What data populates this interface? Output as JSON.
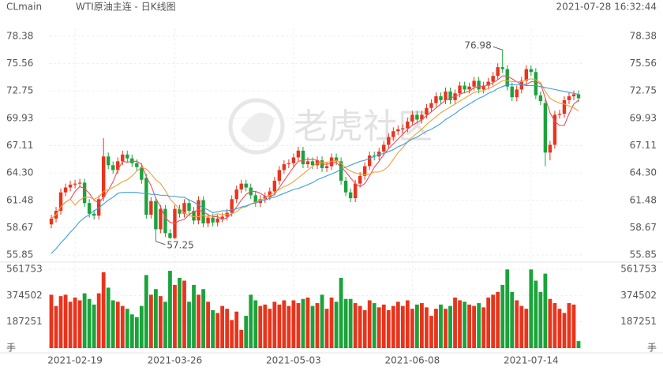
{
  "chart_data": {
    "type": "candlestick",
    "symbol": "CLmain",
    "title": "WTI原油主连 - 日K线图",
    "timestamp": "2021-07-28 16:32:44",
    "watermark": "老虎社区",
    "grid": true,
    "up_color": "#e8341c",
    "down_color": "#1ba33b",
    "categories": [
      null,
      null,
      null,
      null,
      null,
      "2021-02-19",
      null,
      null,
      null,
      null,
      null,
      null,
      null,
      null,
      null,
      null,
      null,
      null,
      null,
      null,
      null,
      null,
      null,
      null,
      null,
      null,
      "2021-03-26",
      null,
      null,
      null,
      null,
      null,
      null,
      null,
      null,
      null,
      null,
      null,
      null,
      null,
      null,
      null,
      null,
      null,
      null,
      null,
      null,
      null,
      null,
      null,
      null,
      "2021-05-03",
      null,
      null,
      null,
      null,
      null,
      null,
      null,
      null,
      null,
      null,
      null,
      null,
      null,
      null,
      null,
      null,
      null,
      null,
      null,
      null,
      null,
      null,
      null,
      null,
      "2021-06-08",
      null,
      null,
      null,
      null,
      null,
      null,
      null,
      null,
      null,
      null,
      null,
      null,
      null,
      null,
      null,
      null,
      null,
      null,
      null,
      null,
      null,
      null,
      null,
      null,
      "2021-07-14",
      null,
      null,
      null,
      null,
      null,
      null,
      null,
      null,
      null,
      null
    ],
    "open": [
      59.0,
      59.6,
      60.4,
      62.3,
      62.8,
      63.1,
      63.2,
      63.3,
      61.2,
      60.1,
      59.9,
      61.8,
      66.0,
      65.1,
      64.6,
      65.5,
      66.2,
      65.8,
      65.3,
      64.9,
      63.8,
      60.0,
      61.4,
      58.5,
      60.6,
      58.1,
      57.6,
      60.6,
      60.1,
      61.2,
      60.4,
      59.4,
      61.5,
      59.1,
      59.7,
      59.2,
      59.6,
      59.8,
      60.2,
      61.6,
      62.6,
      63.2,
      62.8,
      62.0,
      61.2,
      61.6,
      61.9,
      62.4,
      63.5,
      64.6,
      65.2,
      65.3,
      65.9,
      66.6,
      65.2,
      65.5,
      65.1,
      65.6,
      64.8,
      65.0,
      65.9,
      65.5,
      63.5,
      62.3,
      61.7,
      63.2,
      64.0,
      65.0,
      66.1,
      66.0,
      66.5,
      67.2,
      68.0,
      68.6,
      68.8,
      68.9,
      69.6,
      70.3,
      69.8,
      70.3,
      71.0,
      71.5,
      72.2,
      71.8,
      72.7,
      71.8,
      72.5,
      73.3,
      72.9,
      73.2,
      73.8,
      72.9,
      73.3,
      73.7,
      74.3,
      75.2,
      75.0,
      73.2,
      72.1,
      72.9,
      73.8,
      75.0,
      74.7,
      72.3,
      71.5,
      66.4,
      67.2,
      70.3,
      70.4,
      71.8,
      72.2,
      72.4
    ],
    "high": [
      60.0,
      60.8,
      62.7,
      63.2,
      63.5,
      63.6,
      63.7,
      63.7,
      61.6,
      60.5,
      62.0,
      67.9,
      66.4,
      65.5,
      65.9,
      66.6,
      66.6,
      66.2,
      65.7,
      65.3,
      64.2,
      61.8,
      61.8,
      61.0,
      61.0,
      58.5,
      61.0,
      61.0,
      61.6,
      61.6,
      60.8,
      61.9,
      61.9,
      60.1,
      60.1,
      60.0,
      60.2,
      60.6,
      62.0,
      63.0,
      63.6,
      63.6,
      63.2,
      62.4,
      62.0,
      62.3,
      62.8,
      63.9,
      65.0,
      65.6,
      65.7,
      66.3,
      67.0,
      67.0,
      65.9,
      65.9,
      66.0,
      66.0,
      65.4,
      66.3,
      66.3,
      65.9,
      63.9,
      62.7,
      63.6,
      64.4,
      65.4,
      66.5,
      66.5,
      66.9,
      67.6,
      68.4,
      69.0,
      69.2,
      69.3,
      70.0,
      70.7,
      70.7,
      70.7,
      71.4,
      71.9,
      72.6,
      72.6,
      73.1,
      73.1,
      72.9,
      73.7,
      73.7,
      73.6,
      74.2,
      74.2,
      73.7,
      74.1,
      74.7,
      75.6,
      76.98,
      75.4,
      73.6,
      73.3,
      74.2,
      75.4,
      75.4,
      75.1,
      72.7,
      71.9,
      67.6,
      70.7,
      70.8,
      72.2,
      72.6,
      72.8,
      72.8
    ],
    "low": [
      58.6,
      59.2,
      60.0,
      61.9,
      62.4,
      62.7,
      62.8,
      60.8,
      59.7,
      59.5,
      59.5,
      61.4,
      64.7,
      64.2,
      64.2,
      65.1,
      65.4,
      64.9,
      64.5,
      63.2,
      59.6,
      59.6,
      57.25,
      58.1,
      57.7,
      57.5,
      57.5,
      59.7,
      59.7,
      60.0,
      59.0,
      59.0,
      58.7,
      58.7,
      58.8,
      58.8,
      59.2,
      59.4,
      59.8,
      61.2,
      62.2,
      62.4,
      61.6,
      60.8,
      60.8,
      61.2,
      61.5,
      62.0,
      63.1,
      64.2,
      64.8,
      64.9,
      65.5,
      64.8,
      64.8,
      64.7,
      64.7,
      64.4,
      64.4,
      64.6,
      65.1,
      63.1,
      61.9,
      61.3,
      61.3,
      62.8,
      63.6,
      64.6,
      65.6,
      65.6,
      66.1,
      66.8,
      67.6,
      68.2,
      68.4,
      68.5,
      69.2,
      69.4,
      69.4,
      69.9,
      70.6,
      71.1,
      71.4,
      71.4,
      71.4,
      71.4,
      72.1,
      72.5,
      72.5,
      72.8,
      72.5,
      72.5,
      72.9,
      73.3,
      73.9,
      74.6,
      72.8,
      71.7,
      71.7,
      72.5,
      73.4,
      74.3,
      71.9,
      71.3,
      65.0,
      65.6,
      66.8,
      69.9,
      70.0,
      71.4,
      71.8,
      71.6
    ],
    "close": [
      59.6,
      60.4,
      62.3,
      62.8,
      63.1,
      63.2,
      63.3,
      61.2,
      60.1,
      59.9,
      61.6,
      66.0,
      65.1,
      64.6,
      65.5,
      66.2,
      65.8,
      65.3,
      64.9,
      63.6,
      60.0,
      61.4,
      58.5,
      60.6,
      58.1,
      57.6,
      60.6,
      60.1,
      61.2,
      60.4,
      59.4,
      61.5,
      59.1,
      59.7,
      59.2,
      59.6,
      59.8,
      60.2,
      61.6,
      62.6,
      63.2,
      62.8,
      62.0,
      61.2,
      61.6,
      61.9,
      62.4,
      63.5,
      64.6,
      65.2,
      65.3,
      65.9,
      66.6,
      65.2,
      65.5,
      65.1,
      65.6,
      64.8,
      65.0,
      65.9,
      65.5,
      63.5,
      62.3,
      61.7,
      63.2,
      64.0,
      65.0,
      66.1,
      66.0,
      66.5,
      67.2,
      68.0,
      68.6,
      68.8,
      68.9,
      69.6,
      70.3,
      69.8,
      70.3,
      71.0,
      71.5,
      72.2,
      71.8,
      72.7,
      71.8,
      72.5,
      73.3,
      72.9,
      73.2,
      73.8,
      72.9,
      73.3,
      73.7,
      74.3,
      75.2,
      75.0,
      73.2,
      72.1,
      72.9,
      73.8,
      75.0,
      74.7,
      72.3,
      71.7,
      66.4,
      67.2,
      70.3,
      70.4,
      71.8,
      72.2,
      72.4,
      72.0
    ],
    "ma_lines": [
      {
        "color": "#e8505e",
        "values": [
          59.6,
          60.0,
          60.8,
          61.3,
          61.6,
          62.4,
          62.9,
          62.7,
          62.2,
          61.5,
          61.2,
          61.8,
          62.5,
          63.4,
          64.6,
          65.5,
          65.4,
          65.5,
          65.5,
          65.2,
          63.9,
          63.0,
          61.7,
          60.8,
          59.7,
          59.2,
          59.1,
          59.4,
          59.5,
          60.0,
          60.3,
          60.5,
          60.3,
          60.0,
          59.8,
          59.8,
          59.5,
          59.7,
          60.1,
          60.8,
          61.5,
          62.1,
          62.4,
          62.4,
          62.2,
          61.9,
          61.8,
          62.1,
          62.8,
          63.5,
          64.2,
          64.9,
          65.5,
          65.6,
          65.7,
          65.7,
          65.6,
          65.2,
          65.2,
          65.3,
          65.4,
          64.9,
          64.4,
          63.8,
          63.2,
          62.9,
          63.2,
          64.0,
          64.9,
          65.5,
          66.2,
          66.8,
          67.3,
          67.8,
          68.3,
          68.8,
          69.2,
          69.5,
          69.8,
          70.2,
          70.6,
          71.0,
          71.4,
          71.8,
          72.0,
          72.2,
          72.4,
          72.6,
          72.7,
          73.1,
          73.2,
          73.2,
          73.4,
          73.6,
          73.9,
          74.3,
          74.3,
          74.0,
          73.7,
          73.4,
          73.4,
          73.7,
          73.7,
          73.5,
          72.0,
          70.5,
          69.6,
          69.2,
          69.2,
          70.4,
          71.4,
          71.8
        ]
      },
      {
        "color": "#f4a032",
        "values": [
          59.6,
          60.0,
          60.8,
          61.3,
          61.6,
          61.0,
          61.5,
          61.8,
          61.8,
          61.6,
          61.8,
          62.4,
          62.6,
          62.8,
          63.1,
          63.4,
          63.6,
          64.0,
          64.5,
          64.9,
          64.7,
          64.2,
          63.6,
          63.2,
          62.5,
          61.6,
          61.1,
          60.6,
          60.2,
          59.9,
          59.8,
          59.8,
          59.9,
          59.8,
          59.9,
          60.1,
          60.0,
          60.0,
          60.1,
          60.3,
          60.7,
          60.8,
          61.1,
          61.3,
          61.5,
          61.7,
          62.0,
          62.3,
          62.6,
          62.9,
          63.1,
          63.4,
          63.8,
          64.2,
          64.6,
          65.0,
          65.3,
          65.4,
          65.4,
          65.5,
          65.6,
          65.3,
          64.8,
          64.5,
          64.3,
          64.2,
          64.1,
          64.2,
          64.4,
          64.4,
          64.6,
          65.0,
          65.7,
          66.4,
          66.9,
          67.5,
          68.0,
          68.4,
          68.8,
          69.3,
          69.7,
          70.1,
          70.5,
          70.8,
          71.1,
          71.4,
          71.7,
          72.0,
          72.3,
          72.6,
          72.7,
          72.8,
          73.0,
          73.2,
          73.5,
          73.8,
          73.8,
          73.7,
          73.7,
          73.7,
          73.9,
          74.0,
          73.9,
          73.6,
          72.7,
          72.0,
          71.7,
          71.5,
          71.4,
          71.2,
          71.0,
          70.7
        ]
      },
      {
        "color": "#3c9fe0",
        "values": [
          56.0,
          56.5,
          57.1,
          57.6,
          58.2,
          58.7,
          59.3,
          59.7,
          60.0,
          60.4,
          60.7,
          61.1,
          61.5,
          61.8,
          62.2,
          62.3,
          62.3,
          62.3,
          62.3,
          62.2,
          62.2,
          62.1,
          62.1,
          62.0,
          62.0,
          61.9,
          61.9,
          61.8,
          61.8,
          61.5,
          61.3,
          61.0,
          60.7,
          60.5,
          60.2,
          60.3,
          60.4,
          60.4,
          60.5,
          60.6,
          60.8,
          60.9,
          61.1,
          61.2,
          61.4,
          61.5,
          61.7,
          61.8,
          62.0,
          62.2,
          62.4,
          62.6,
          62.7,
          62.9,
          63.1,
          63.3,
          63.6,
          63.8,
          64.0,
          64.2,
          64.4,
          64.7,
          64.9,
          65.1,
          65.3,
          65.5,
          65.6,
          65.8,
          66.0,
          66.2,
          66.3,
          66.5,
          66.7,
          67.0,
          67.2,
          67.5,
          67.8,
          68.0,
          68.3,
          68.6,
          68.8,
          69.1,
          69.4,
          69.8,
          70.1,
          70.4,
          70.8,
          71.1,
          71.4,
          71.7,
          72.0,
          72.2,
          72.5,
          72.7,
          73.0,
          73.2,
          73.4,
          73.4,
          73.4,
          73.4,
          73.3,
          73.3,
          73.3,
          73.2,
          73.1,
          73.0,
          72.9,
          72.8,
          72.7,
          72.6,
          72.5,
          72.4
        ]
      }
    ],
    "ylim": [
      55.85,
      78.38
    ],
    "yticks": [
      55.85,
      58.67,
      61.48,
      {
        "value": 64.3,
        "label": "64.30"
      },
      67.11,
      69.93,
      72.75,
      75.56,
      78.38
    ],
    "volume": {
      "values": [
        380000,
        300000,
        370000,
        380000,
        330000,
        360000,
        340000,
        390000,
        350000,
        310000,
        390000,
        540000,
        430000,
        340000,
        330000,
        300000,
        280000,
        240000,
        220000,
        300000,
        520000,
        380000,
        420000,
        370000,
        330000,
        550000,
        450000,
        500000,
        480000,
        330000,
        450000,
        380000,
        420000,
        330000,
        270000,
        250000,
        300000,
        280000,
        200000,
        260000,
        130000,
        230000,
        380000,
        340000,
        300000,
        310000,
        280000,
        330000,
        310000,
        340000,
        300000,
        340000,
        320000,
        350000,
        360000,
        300000,
        320000,
        380000,
        280000,
        360000,
        330000,
        500000,
        350000,
        350000,
        320000,
        300000,
        270000,
        340000,
        320000,
        290000,
        310000,
        270000,
        300000,
        330000,
        300000,
        340000,
        280000,
        310000,
        320000,
        290000,
        230000,
        280000,
        310000,
        280000,
        300000,
        360000,
        340000,
        330000,
        310000,
        300000,
        320000,
        290000,
        360000,
        380000,
        400000,
        450000,
        560000,
        400000,
        340000,
        300000,
        280000,
        560000,
        480000,
        400000,
        530000,
        350000,
        320000,
        280000,
        250000,
        320000,
        310000,
        50000
      ],
      "ylim": [
        0,
        561753
      ],
      "yticks": [
        {
          "value": 0,
          "label": "手"
        },
        187251,
        374502,
        561753
      ]
    }
  }
}
